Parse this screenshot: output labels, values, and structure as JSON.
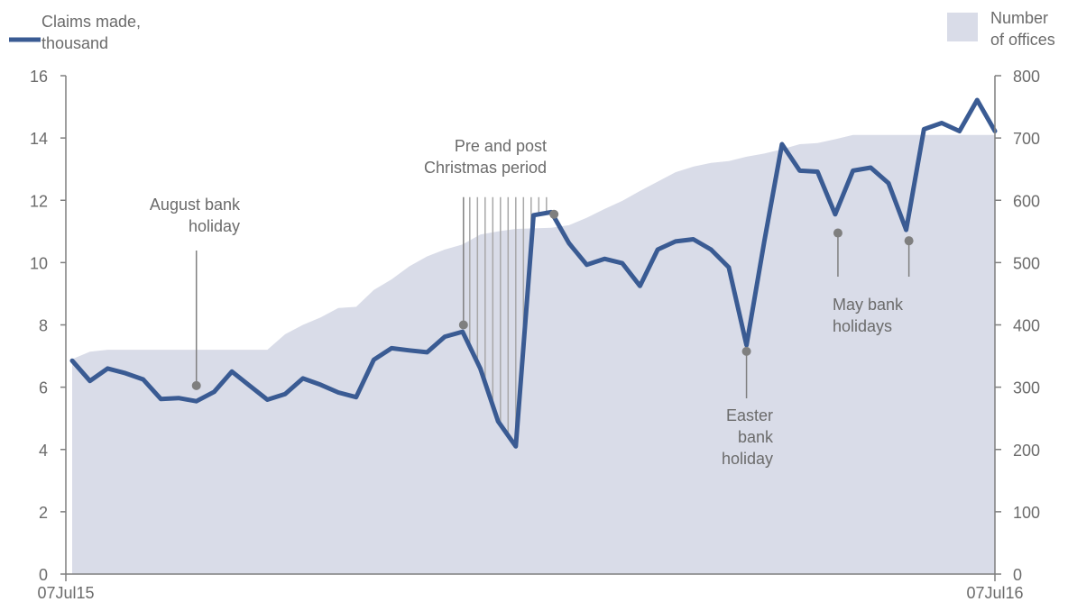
{
  "chart_data": {
    "type": "line",
    "xlabel": "",
    "x_start": "07Jul15",
    "x_end": "07Jul16",
    "y_left": {
      "label": "",
      "lim": [
        0,
        16
      ],
      "ticks": [
        0,
        2,
        4,
        6,
        8,
        10,
        12,
        14,
        16
      ]
    },
    "y_right": {
      "label": "",
      "lim": [
        0,
        800
      ],
      "ticks": [
        0,
        100,
        200,
        300,
        400,
        500,
        600,
        700,
        800
      ]
    },
    "x_tick_labels": [
      "07Jul15",
      "07Jul16"
    ],
    "legend": {
      "placement": "top",
      "line_label_line1": "Claims made,",
      "line_label_line2": "thousand",
      "area_label_line1": "Number",
      "area_label_line2": "of offices"
    },
    "colors": {
      "line": "#3a5b93",
      "area": "#d9dce8",
      "annotation": "#7f7f7f",
      "axis": "#7f7f7f"
    },
    "series": [
      {
        "name": "Claims made, thousand",
        "axis": "left",
        "type": "line",
        "values": [
          6.85,
          6.2,
          6.6,
          6.45,
          6.25,
          5.62,
          5.65,
          5.55,
          5.85,
          6.5,
          6.05,
          5.6,
          5.78,
          6.28,
          6.08,
          5.83,
          5.68,
          6.88,
          7.25,
          7.18,
          7.12,
          7.62,
          7.78,
          6.6,
          4.9,
          4.1,
          11.52,
          11.62,
          10.62,
          9.93,
          10.12,
          9.98,
          9.25,
          10.42,
          10.68,
          10.75,
          10.42,
          9.85,
          7.35,
          10.68,
          13.8,
          12.95,
          12.92,
          11.55,
          12.95,
          13.05,
          12.55,
          11.05,
          14.28,
          14.48,
          14.22,
          15.22,
          14.22
        ]
      },
      {
        "name": "Number of offices",
        "axis": "right",
        "type": "area",
        "values": [
          345,
          357,
          360,
          360,
          360,
          360,
          360,
          360,
          360,
          360,
          360,
          360,
          385,
          400,
          412,
          427,
          429,
          456,
          473,
          494,
          510,
          521,
          529,
          545,
          550,
          554,
          555,
          556,
          560,
          572,
          586,
          599,
          615,
          630,
          645,
          654,
          660,
          663,
          670,
          675,
          682,
          690,
          692,
          698,
          705,
          705,
          705,
          705,
          705,
          705,
          705,
          705,
          705
        ]
      }
    ],
    "shaded_period": {
      "label_line1": "Pre and post",
      "label_line2": "Christmas period",
      "from_index": 22,
      "to_index": 27
    },
    "annotations": [
      {
        "label_line1": "August bank",
        "label_line2": "holiday",
        "index": 7,
        "value": 6.05
      },
      {
        "label_line1": "Easter",
        "label_line2": "bank",
        "label_line3": "holiday",
        "index": 38,
        "value": 7.15
      },
      {
        "label_line1": "May bank",
        "label_line2": "holidays",
        "indices": [
          43,
          47
        ],
        "values": [
          10.95,
          10.7
        ]
      }
    ]
  }
}
